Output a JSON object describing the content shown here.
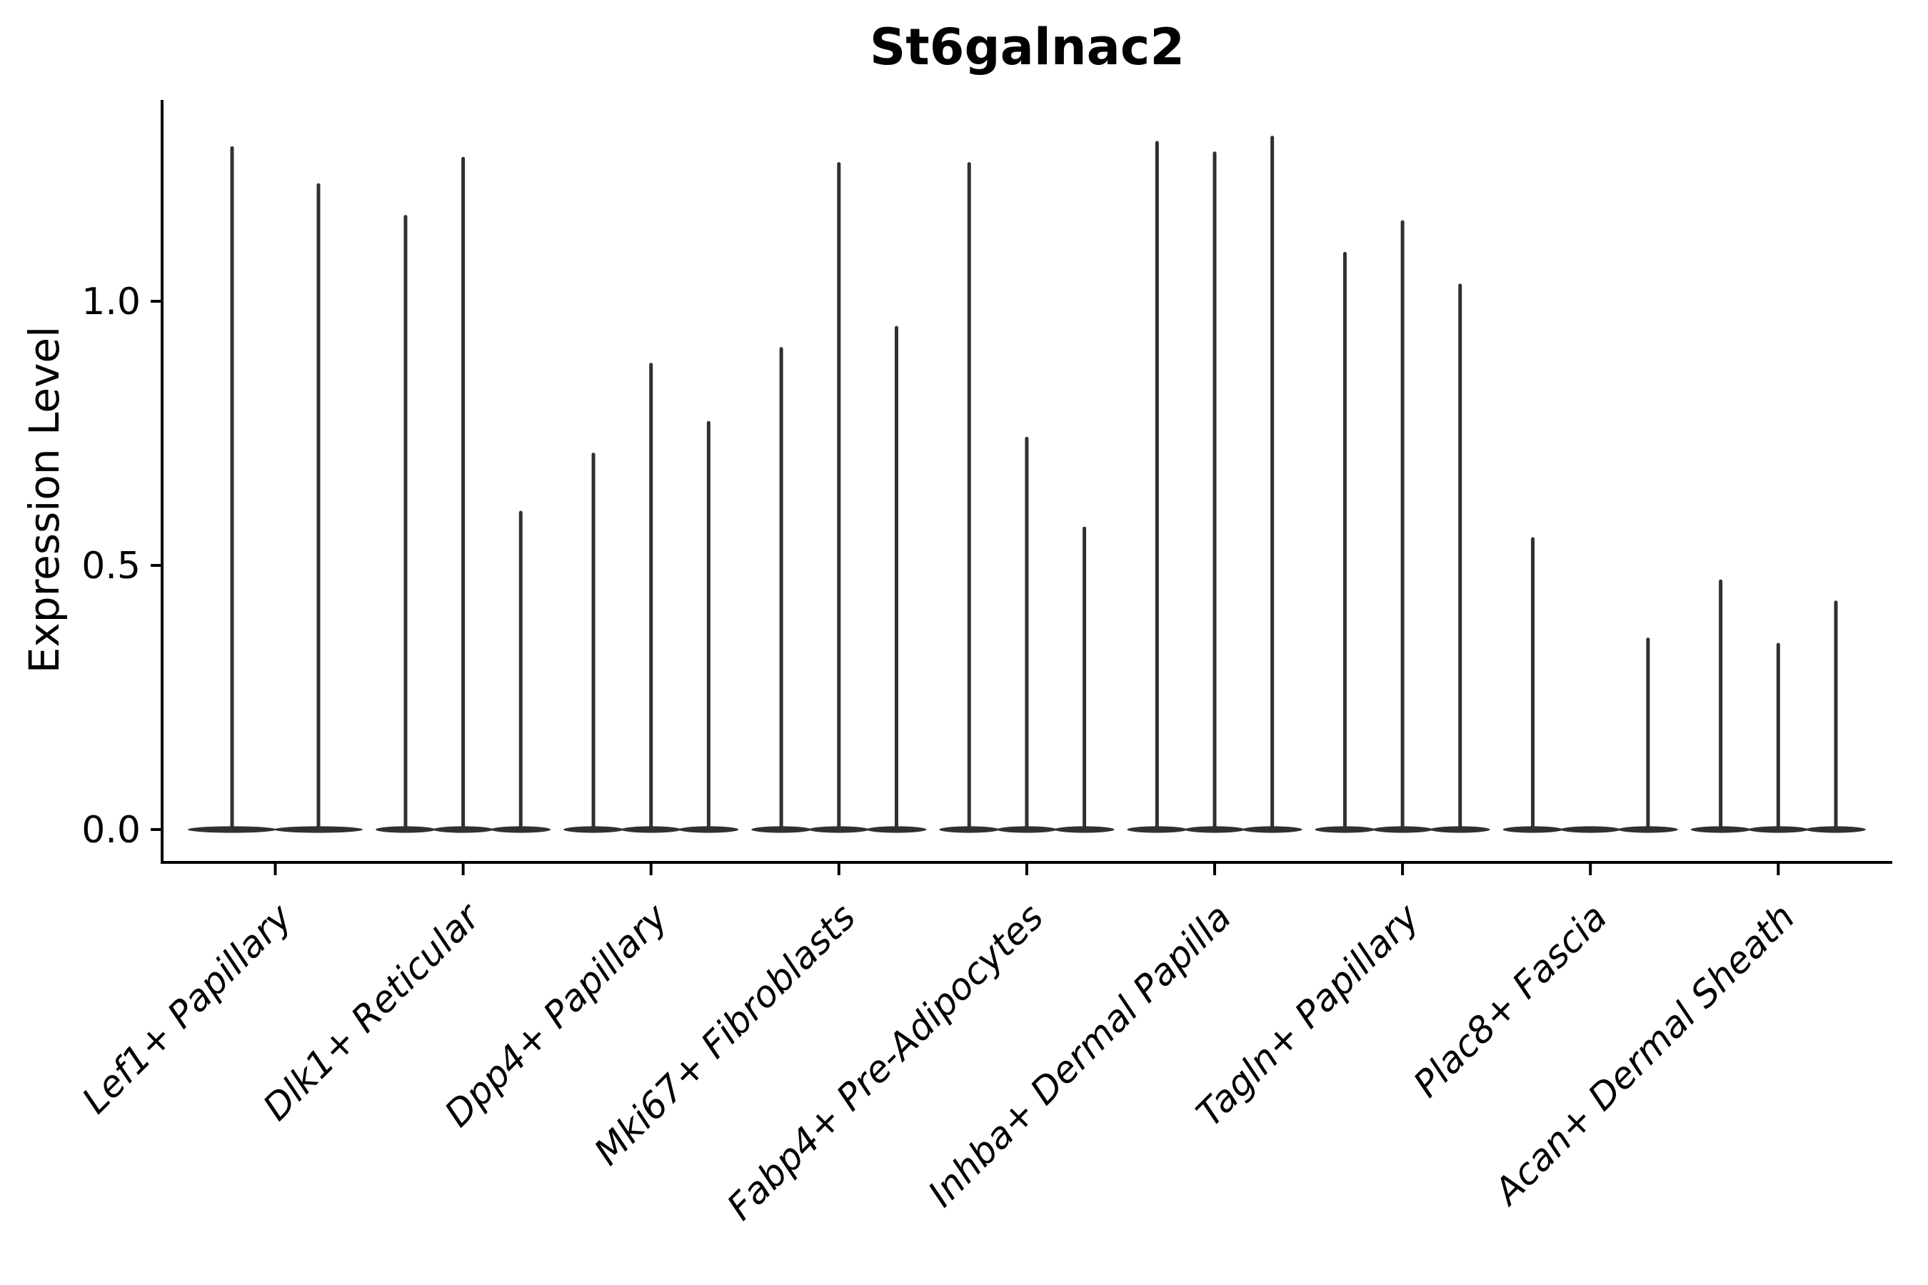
{
  "chart_data": {
    "type": "violin",
    "title": "St6galnac2",
    "ylabel": "Expression Level",
    "xlabel": "",
    "yticks": [
      0.0,
      0.5,
      1.0
    ],
    "ylim": [
      -0.07,
      1.38
    ],
    "grid": false,
    "legend": "none",
    "categories": [
      "Lef1+ Papillary",
      "Dlk1+ Reticular",
      "Dpp4+ Papillary",
      "Mki67+ Fibroblasts",
      "Fabp4+ Pre-Adipocytes",
      "Inhba+ Dermal Papilla",
      "Tagln+ Papillary",
      "Plac8+ Fascia",
      "Acan+ Dermal Sheath"
    ],
    "groups": [
      {
        "label": "Lef1+ Papillary",
        "violin_peaks": [
          1.29,
          1.22
        ]
      },
      {
        "label": "Dlk1+ Reticular",
        "violin_peaks": [
          1.16,
          1.27,
          0.6
        ]
      },
      {
        "label": "Dpp4+ Papillary",
        "violin_peaks": [
          0.71,
          0.88,
          0.77
        ]
      },
      {
        "label": "Mki67+ Fibroblasts",
        "violin_peaks": [
          0.91,
          1.26,
          0.95
        ]
      },
      {
        "label": "Fabp4+ Pre-Adipocytes",
        "violin_peaks": [
          1.26,
          0.74,
          0.57
        ]
      },
      {
        "label": "Inhba+ Dermal Papilla",
        "violin_peaks": [
          1.3,
          1.28,
          1.31
        ]
      },
      {
        "label": "Tagln+ Papillary",
        "violin_peaks": [
          1.09,
          1.15,
          1.03
        ]
      },
      {
        "label": "Plac8+ Fascia",
        "violin_peaks": [
          0.55,
          0.0,
          0.36
        ]
      },
      {
        "label": "Acan+ Dermal Sheath",
        "violin_peaks": [
          0.47,
          0.35,
          0.43
        ]
      }
    ],
    "colors": {
      "violin": "#303030",
      "axis": "#000000",
      "text": "#000000",
      "background": "#ffffff"
    }
  }
}
